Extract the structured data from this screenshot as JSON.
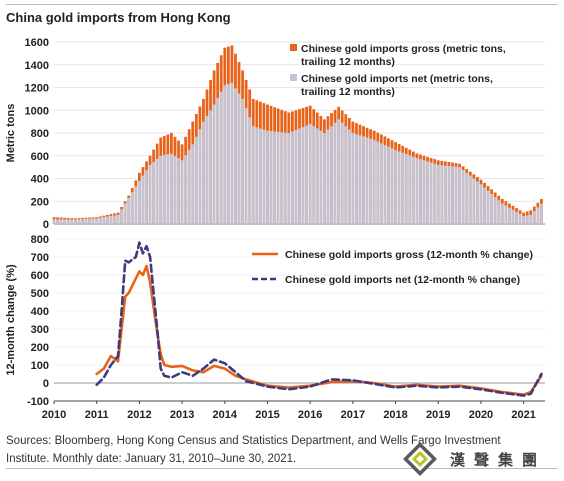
{
  "chart_data": [
    {
      "type": "bar",
      "title": "China gold imports from Hong Kong",
      "ylabel": "Metric tons",
      "ylim": [
        0,
        1600
      ],
      "yticks": [
        0,
        200,
        400,
        600,
        800,
        1000,
        1200,
        1400,
        1600
      ],
      "stacked": true,
      "x_start": "2010-01",
      "x_end": "2021-06",
      "gross_anchors": [
        [
          "2010-01",
          60
        ],
        [
          "2010-07",
          50
        ],
        [
          "2011-01",
          60
        ],
        [
          "2011-07",
          100
        ],
        [
          "2011-10",
          250
        ],
        [
          "2012-01",
          450
        ],
        [
          "2012-04",
          600
        ],
        [
          "2012-07",
          760
        ],
        [
          "2012-10",
          800
        ],
        [
          "2013-01",
          700
        ],
        [
          "2013-04",
          900
        ],
        [
          "2013-07",
          1100
        ],
        [
          "2013-10",
          1350
        ],
        [
          "2014-01",
          1550
        ],
        [
          "2014-03",
          1570
        ],
        [
          "2014-06",
          1350
        ],
        [
          "2014-09",
          1100
        ],
        [
          "2015-01",
          1050
        ],
        [
          "2015-07",
          980
        ],
        [
          "2016-01",
          1040
        ],
        [
          "2016-05",
          920
        ],
        [
          "2016-09",
          1030
        ],
        [
          "2017-01",
          900
        ],
        [
          "2017-07",
          820
        ],
        [
          "2018-01",
          720
        ],
        [
          "2018-07",
          620
        ],
        [
          "2019-01",
          560
        ],
        [
          "2019-07",
          530
        ],
        [
          "2020-01",
          390
        ],
        [
          "2020-07",
          220
        ],
        [
          "2021-01",
          100
        ],
        [
          "2021-03",
          120
        ],
        [
          "2021-06",
          220
        ]
      ],
      "net_anchors": [
        [
          "2010-01",
          40
        ],
        [
          "2010-07",
          40
        ],
        [
          "2011-01",
          50
        ],
        [
          "2011-07",
          80
        ],
        [
          "2011-10",
          230
        ],
        [
          "2012-01",
          380
        ],
        [
          "2012-04",
          520
        ],
        [
          "2012-07",
          600
        ],
        [
          "2012-10",
          620
        ],
        [
          "2013-01",
          560
        ],
        [
          "2013-04",
          700
        ],
        [
          "2013-07",
          900
        ],
        [
          "2013-10",
          1050
        ],
        [
          "2014-01",
          1220
        ],
        [
          "2014-03",
          1240
        ],
        [
          "2014-06",
          1100
        ],
        [
          "2014-09",
          860
        ],
        [
          "2015-01",
          820
        ],
        [
          "2015-07",
          800
        ],
        [
          "2016-01",
          880
        ],
        [
          "2016-05",
          800
        ],
        [
          "2016-09",
          920
        ],
        [
          "2017-01",
          800
        ],
        [
          "2017-07",
          740
        ],
        [
          "2018-01",
          650
        ],
        [
          "2018-07",
          580
        ],
        [
          "2019-01",
          520
        ],
        [
          "2019-07",
          500
        ],
        [
          "2020-01",
          350
        ],
        [
          "2020-07",
          180
        ],
        [
          "2021-01",
          70
        ],
        [
          "2021-03",
          80
        ],
        [
          "2021-06",
          180
        ]
      ],
      "series": [
        {
          "name": "Chinese gold imports gross (metric tons, trailing 12 months)",
          "color": "#E8621A"
        },
        {
          "name": "Chinese gold imports net (metric tons, trailing 12 months)",
          "color": "#C4C3D4"
        }
      ]
    },
    {
      "type": "line",
      "ylabel": "12-month change (%)",
      "ylim": [
        -100,
        800
      ],
      "yticks": [
        -100,
        0,
        100,
        200,
        300,
        400,
        500,
        600,
        700,
        800
      ],
      "xticks": [
        "2010",
        "2011",
        "2012",
        "2013",
        "2014",
        "2015",
        "2016",
        "2017",
        "2018",
        "2019",
        "2020",
        "2021"
      ],
      "series": [
        {
          "name": "Chinese gold imports gross (12-month % change)",
          "color": "#E8621A",
          "dash": false,
          "points": [
            [
              "2011-01",
              50
            ],
            [
              "2011-03",
              80
            ],
            [
              "2011-05",
              150
            ],
            [
              "2011-07",
              120
            ],
            [
              "2011-08",
              300
            ],
            [
              "2011-09",
              480
            ],
            [
              "2011-10",
              500
            ],
            [
              "2011-12",
              580
            ],
            [
              "2012-01",
              620
            ],
            [
              "2012-02",
              600
            ],
            [
              "2012-03",
              650
            ],
            [
              "2012-04",
              560
            ],
            [
              "2012-05",
              420
            ],
            [
              "2012-06",
              280
            ],
            [
              "2012-07",
              160
            ],
            [
              "2012-08",
              100
            ],
            [
              "2012-10",
              90
            ],
            [
              "2013-01",
              95
            ],
            [
              "2013-04",
              70
            ],
            [
              "2013-07",
              60
            ],
            [
              "2013-10",
              95
            ],
            [
              "2014-01",
              80
            ],
            [
              "2014-04",
              40
            ],
            [
              "2014-07",
              20
            ],
            [
              "2015-01",
              -15
            ],
            [
              "2015-07",
              -25
            ],
            [
              "2016-01",
              -15
            ],
            [
              "2016-07",
              5
            ],
            [
              "2017-01",
              10
            ],
            [
              "2017-07",
              0
            ],
            [
              "2018-01",
              -20
            ],
            [
              "2018-07",
              -10
            ],
            [
              "2019-01",
              -20
            ],
            [
              "2019-07",
              -15
            ],
            [
              "2020-01",
              -30
            ],
            [
              "2020-07",
              -50
            ],
            [
              "2021-01",
              -65
            ],
            [
              "2021-03",
              -50
            ],
            [
              "2021-06",
              40
            ]
          ]
        },
        {
          "name": "Chinese gold imports net (12-month % change)",
          "color": "#3F3C7E",
          "dash": true,
          "points": [
            [
              "2011-01",
              -10
            ],
            [
              "2011-03",
              30
            ],
            [
              "2011-05",
              100
            ],
            [
              "2011-07",
              150
            ],
            [
              "2011-08",
              400
            ],
            [
              "2011-09",
              680
            ],
            [
              "2011-10",
              670
            ],
            [
              "2011-12",
              700
            ],
            [
              "2012-01",
              780
            ],
            [
              "2012-02",
              720
            ],
            [
              "2012-03",
              760
            ],
            [
              "2012-04",
              700
            ],
            [
              "2012-05",
              500
            ],
            [
              "2012-06",
              300
            ],
            [
              "2012-07",
              80
            ],
            [
              "2012-08",
              40
            ],
            [
              "2012-10",
              30
            ],
            [
              "2013-01",
              60
            ],
            [
              "2013-04",
              40
            ],
            [
              "2013-07",
              80
            ],
            [
              "2013-10",
              130
            ],
            [
              "2014-01",
              110
            ],
            [
              "2014-04",
              60
            ],
            [
              "2014-07",
              10
            ],
            [
              "2015-01",
              -20
            ],
            [
              "2015-07",
              -35
            ],
            [
              "2016-01",
              -20
            ],
            [
              "2016-07",
              20
            ],
            [
              "2017-01",
              15
            ],
            [
              "2017-07",
              -5
            ],
            [
              "2018-01",
              -25
            ],
            [
              "2018-07",
              -15
            ],
            [
              "2019-01",
              -25
            ],
            [
              "2019-07",
              -20
            ],
            [
              "2020-01",
              -35
            ],
            [
              "2020-07",
              -55
            ],
            [
              "2021-01",
              -70
            ],
            [
              "2021-03",
              -60
            ],
            [
              "2021-06",
              50
            ]
          ]
        }
      ]
    }
  ],
  "page": {
    "title": "China gold imports from Hong Kong",
    "sources": "Sources: Bloomberg, Hong Kong Census and Statistics Department, and Wells Fargo Investment Institute. Monthly date: January 31, 2010–June 30, 2021.",
    "logo_text": "漢聲集團"
  }
}
